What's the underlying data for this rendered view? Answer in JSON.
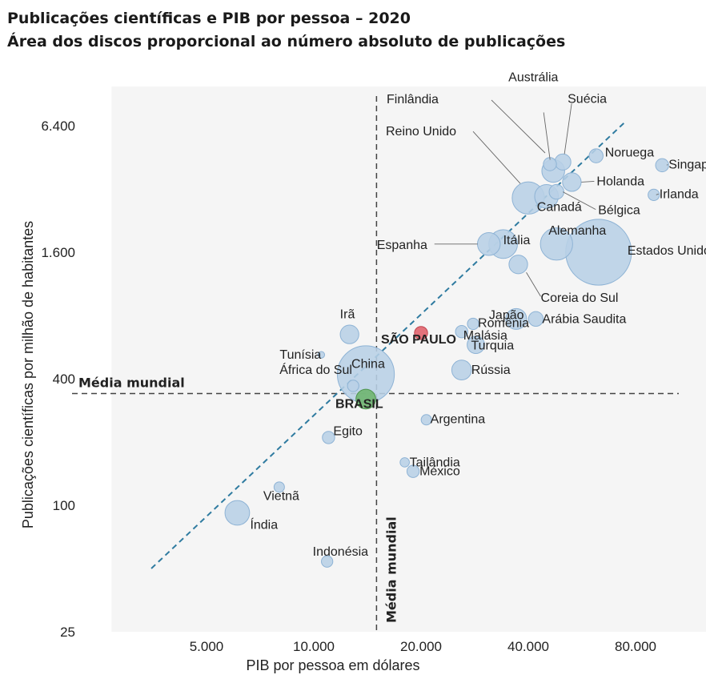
{
  "title": "Publicações científicas e PIB por pessoa – 2020",
  "subtitle": "Área dos discos proporcional ao número absoluto de publicações",
  "colors": {
    "bubble_fill": "#b8d0e6",
    "bubble_stroke": "#8eb3d5",
    "highlight_sp": "#e0606a",
    "highlight_brasil": "#6cb46c",
    "trend": "#2f7ba0",
    "reference": "#444444",
    "plot_background": "#f5f5f5"
  },
  "chart_data": {
    "type": "scatter",
    "title": "Publicações científicas e PIB por pessoa – 2020",
    "subtitle": "Área dos discos proporcional ao número absoluto de publicações",
    "xlabel": "PIB por pessoa em dólares",
    "ylabel": "Publicações científicas por milhão de habitantes",
    "x_scale": "log",
    "y_scale": "log",
    "xlim": [
      3000,
      120000
    ],
    "ylim": [
      25,
      9000
    ],
    "x_ticks": [
      5000,
      10000,
      20000,
      40000,
      80000
    ],
    "x_tick_labels": [
      "5.000",
      "10.000",
      "20.000",
      "40.000",
      "80.000"
    ],
    "y_ticks": [
      25,
      100,
      400,
      1600,
      6400
    ],
    "y_tick_labels": [
      "25",
      "100",
      "400",
      "1.600",
      "6.400"
    ],
    "grid": false,
    "reference_lines": [
      {
        "axis": "y",
        "value": 340,
        "label": "Média mundial"
      },
      {
        "axis": "x",
        "value": 15000,
        "label": "Média mundial"
      }
    ],
    "trend_line": {
      "from": [
        3500,
        50
      ],
      "to": [
        75000,
        6700
      ]
    },
    "points": [
      {
        "label": "Estados Unidos",
        "gdp": 63000,
        "pubs": 1600,
        "size": 10
      },
      {
        "label": "China",
        "gdp": 14000,
        "pubs": 420,
        "size": 7.5
      },
      {
        "label": "Reino Unido",
        "gdp": 40000,
        "pubs": 2900,
        "size": 2.4
      },
      {
        "label": "Alemanha",
        "gdp": 48000,
        "pubs": 1750,
        "size": 2.4
      },
      {
        "label": "Itália",
        "gdp": 34000,
        "pubs": 1750,
        "size": 1.9
      },
      {
        "label": "Canadá",
        "gdp": 45000,
        "pubs": 2950,
        "size": 1.3
      },
      {
        "label": "Austrália",
        "gdp": 47000,
        "pubs": 3900,
        "size": 1.2
      },
      {
        "label": "Índia",
        "gdp": 6100,
        "pubs": 92,
        "size": 1.4
      },
      {
        "label": "Espanha",
        "gdp": 31000,
        "pubs": 1750,
        "size": 1.2
      },
      {
        "label": "Japão",
        "gdp": 37000,
        "pubs": 770,
        "size": 1.0
      },
      {
        "label": "Rússia",
        "gdp": 26000,
        "pubs": 440,
        "size": 0.9
      },
      {
        "label": "Coreia do Sul",
        "gdp": 37500,
        "pubs": 1400,
        "size": 0.8
      },
      {
        "label": "Holanda",
        "gdp": 53000,
        "pubs": 3450,
        "size": 0.8
      },
      {
        "label": "Turquia",
        "gdp": 28500,
        "pubs": 580,
        "size": 0.7
      },
      {
        "label": "BRASIL",
        "gdp": 14000,
        "pubs": 320,
        "size": 0.9
      },
      {
        "label": "SÃO PAULO",
        "gdp": 20000,
        "pubs": 660,
        "size": 0.4
      },
      {
        "label": "Irã",
        "gdp": 12600,
        "pubs": 650,
        "size": 0.8
      },
      {
        "label": "Suécia",
        "gdp": 50000,
        "pubs": 4300,
        "size": 0.6
      },
      {
        "label": "Finlândia",
        "gdp": 46000,
        "pubs": 4200,
        "size": 0.4
      },
      {
        "label": "Bélgica",
        "gdp": 48000,
        "pubs": 3100,
        "size": 0.5
      },
      {
        "label": "Noruega",
        "gdp": 62000,
        "pubs": 4600,
        "size": 0.45
      },
      {
        "label": "Singapura",
        "gdp": 95000,
        "pubs": 4150,
        "size": 0.4
      },
      {
        "label": "Irlanda",
        "gdp": 90000,
        "pubs": 3000,
        "size": 0.3
      },
      {
        "label": "Arábia Saudita",
        "gdp": 42000,
        "pubs": 770,
        "size": 0.5
      },
      {
        "label": "Malásia",
        "gdp": 26000,
        "pubs": 670,
        "size": 0.35
      },
      {
        "label": "Romênia",
        "gdp": 28000,
        "pubs": 730,
        "size": 0.3
      },
      {
        "label": "Egito",
        "gdp": 11000,
        "pubs": 210,
        "size": 0.35
      },
      {
        "label": "Argentina",
        "gdp": 20700,
        "pubs": 255,
        "size": 0.25
      },
      {
        "label": "Tailândia",
        "gdp": 18000,
        "pubs": 160,
        "size": 0.2
      },
      {
        "label": "México",
        "gdp": 19000,
        "pubs": 145,
        "size": 0.35
      },
      {
        "label": "Vietnã",
        "gdp": 8000,
        "pubs": 122,
        "size": 0.25
      },
      {
        "label": "Indonésia",
        "gdp": 10900,
        "pubs": 54,
        "size": 0.3
      },
      {
        "label": "Tunísia",
        "gdp": 10500,
        "pubs": 520,
        "size": 0.1
      },
      {
        "label": "África do Sul",
        "gdp": 12900,
        "pubs": 370,
        "size": 0.3
      }
    ]
  }
}
